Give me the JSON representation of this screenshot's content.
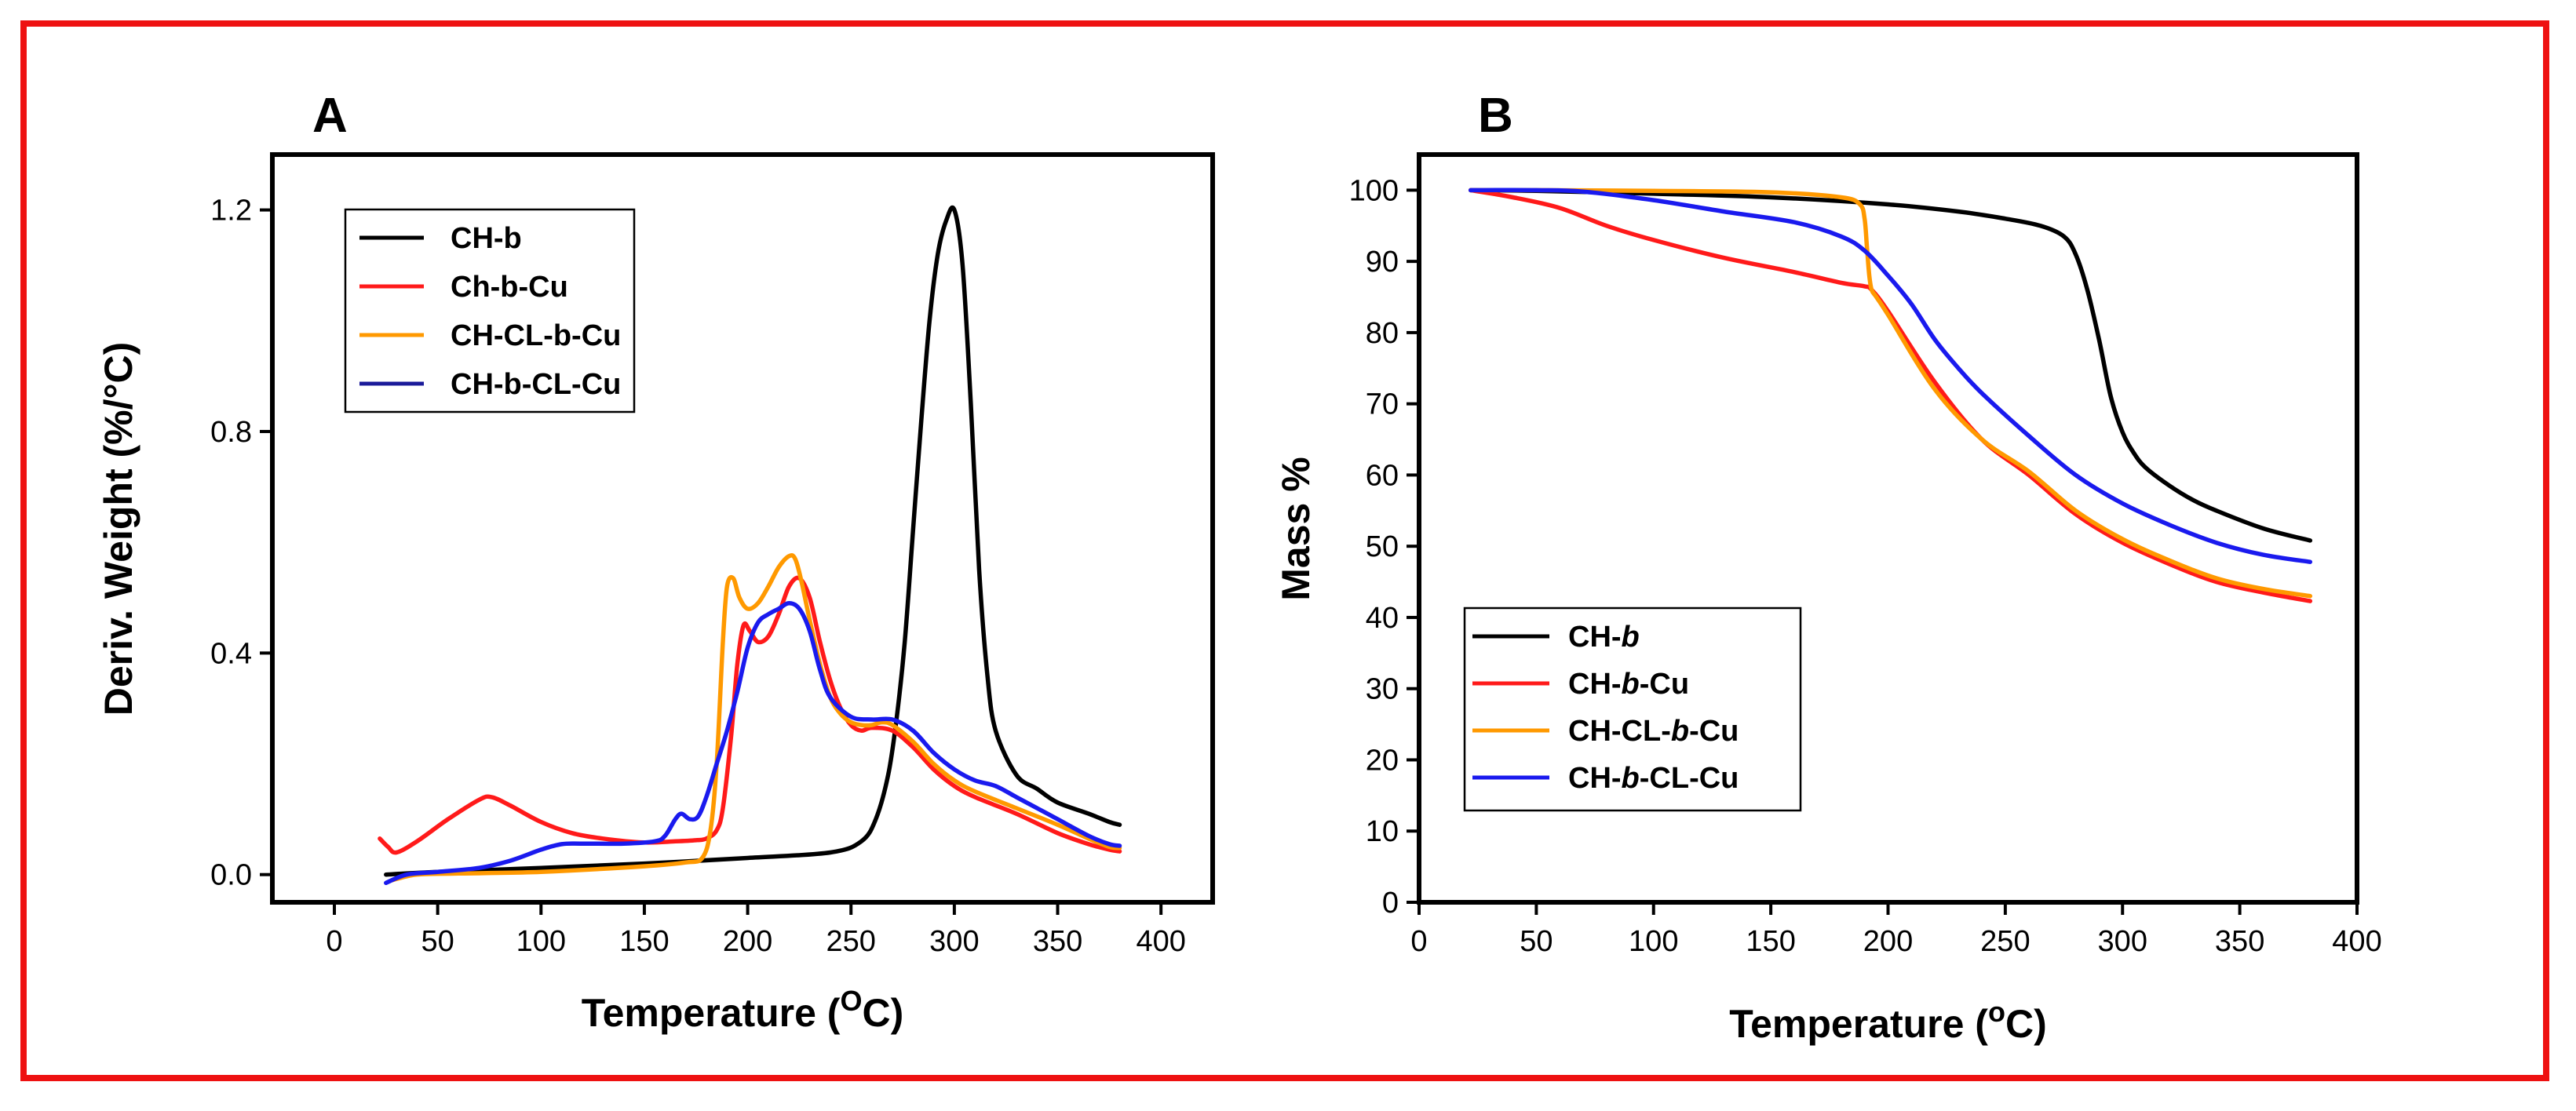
{
  "colors": {
    "frame": "#ee1111",
    "black": "#000000",
    "red": "#ff1a1a",
    "orange": "#ff9900",
    "blue": "#1a1aee",
    "navy": "#1a1a99"
  },
  "chart_data": [
    {
      "panel_label": "A",
      "type": "line",
      "xlabel": {
        "pre": "Temperature (",
        "sup": "O",
        "post": "C)"
      },
      "ylabel": "Deriv. Weight (%/°C)",
      "xlim": [
        -30,
        425
      ],
      "ylim": [
        -0.05,
        1.3
      ],
      "xticks": [
        0,
        50,
        100,
        150,
        200,
        250,
        300,
        350,
        400
      ],
      "yticks": [
        0.0,
        0.4,
        0.8,
        1.2
      ],
      "ytick_labels": [
        "0.0",
        "0.4",
        "0.8",
        "1.2"
      ],
      "legend_position": "top-left",
      "series": [
        {
          "name": "CH-b",
          "color": "#000000",
          "x": [
            25,
            50,
            100,
            150,
            200,
            240,
            255,
            262,
            268,
            272,
            276,
            280,
            284,
            288,
            292,
            296,
            300,
            304,
            308,
            312,
            316,
            320,
            330,
            340,
            350,
            365,
            375,
            380
          ],
          "y": [
            0.0,
            0.005,
            0.012,
            0.02,
            0.03,
            0.04,
            0.06,
            0.1,
            0.18,
            0.28,
            0.42,
            0.62,
            0.82,
            1.0,
            1.12,
            1.18,
            1.2,
            1.1,
            0.85,
            0.55,
            0.36,
            0.26,
            0.18,
            0.155,
            0.13,
            0.11,
            0.095,
            0.09
          ]
        },
        {
          "name": "Ch-b-Cu",
          "color": "#ff1a1a",
          "x": [
            22,
            26,
            30,
            40,
            55,
            70,
            76,
            85,
            100,
            115,
            130,
            150,
            165,
            175,
            180,
            185,
            188,
            192,
            195,
            198,
            201,
            205,
            210,
            215,
            220,
            225,
            230,
            235,
            240,
            245,
            250,
            255,
            260,
            270,
            280,
            290,
            300,
            310,
            330,
            350,
            365,
            375,
            380
          ],
          "y": [
            0.065,
            0.05,
            0.04,
            0.06,
            0.1,
            0.135,
            0.14,
            0.125,
            0.095,
            0.075,
            0.065,
            0.058,
            0.06,
            0.062,
            0.065,
            0.08,
            0.12,
            0.25,
            0.38,
            0.45,
            0.44,
            0.42,
            0.43,
            0.47,
            0.52,
            0.535,
            0.5,
            0.42,
            0.35,
            0.3,
            0.27,
            0.26,
            0.265,
            0.26,
            0.23,
            0.19,
            0.16,
            0.14,
            0.11,
            0.075,
            0.055,
            0.045,
            0.042
          ]
        },
        {
          "name": "CH-CL-b-Cu",
          "color": "#ff9900",
          "x": [
            28,
            40,
            60,
            100,
            150,
            170,
            178,
            182,
            185,
            188,
            190,
            193,
            196,
            200,
            205,
            210,
            215,
            220,
            223,
            226,
            230,
            235,
            240,
            245,
            250,
            255,
            260,
            265,
            270,
            280,
            290,
            300,
            310,
            330,
            350,
            365,
            375,
            380
          ],
          "y": [
            -0.01,
            0.0,
            0.002,
            0.005,
            0.015,
            0.022,
            0.03,
            0.08,
            0.2,
            0.42,
            0.52,
            0.535,
            0.5,
            0.48,
            0.49,
            0.52,
            0.555,
            0.575,
            0.57,
            0.53,
            0.46,
            0.38,
            0.32,
            0.29,
            0.275,
            0.27,
            0.27,
            0.275,
            0.27,
            0.24,
            0.2,
            0.17,
            0.15,
            0.12,
            0.09,
            0.065,
            0.05,
            0.048
          ]
        },
        {
          "name": "CH-b-CL-Cu",
          "color": "#1a1aee",
          "x": [
            25,
            35,
            50,
            70,
            85,
            100,
            110,
            120,
            140,
            155,
            160,
            165,
            168,
            172,
            176,
            180,
            185,
            190,
            195,
            200,
            205,
            210,
            215,
            220,
            225,
            230,
            235,
            240,
            250,
            260,
            270,
            280,
            290,
            300,
            310,
            320,
            330,
            340,
            350,
            365,
            375,
            380
          ],
          "y": [
            -0.015,
            0.0,
            0.005,
            0.012,
            0.025,
            0.045,
            0.055,
            0.056,
            0.056,
            0.06,
            0.07,
            0.1,
            0.11,
            0.1,
            0.105,
            0.14,
            0.2,
            0.26,
            0.33,
            0.41,
            0.455,
            0.47,
            0.48,
            0.49,
            0.48,
            0.44,
            0.37,
            0.32,
            0.285,
            0.28,
            0.28,
            0.26,
            0.22,
            0.19,
            0.17,
            0.16,
            0.14,
            0.12,
            0.1,
            0.07,
            0.055,
            0.052
          ]
        }
      ],
      "legend": [
        "CH-b",
        "Ch-b-Cu",
        "CH-CL-b-Cu",
        "CH-b-CL-Cu"
      ],
      "legend_colors": [
        "#000000",
        "#ff1a1a",
        "#ff9900",
        "#1a1a99"
      ]
    },
    {
      "panel_label": "B",
      "type": "line",
      "xlabel": {
        "pre": "Temperature (",
        "sup": "o",
        "post": "C)"
      },
      "ylabel": "Mass %",
      "xlim": [
        0,
        400
      ],
      "ylim": [
        0,
        105
      ],
      "xticks": [
        0,
        50,
        100,
        150,
        200,
        250,
        300,
        350,
        400
      ],
      "yticks": [
        0,
        10,
        20,
        30,
        40,
        50,
        60,
        70,
        80,
        90,
        100
      ],
      "ytick_labels": [
        "0",
        "10",
        "20",
        "30",
        "40",
        "50",
        "60",
        "70",
        "80",
        "90",
        "100"
      ],
      "legend_position": "bottom-left",
      "series": [
        {
          "name": "CH-b",
          "color": "#000000",
          "x": [
            22,
            50,
            100,
            150,
            200,
            230,
            250,
            265,
            275,
            280,
            285,
            290,
            295,
            300,
            305,
            310,
            320,
            330,
            340,
            360,
            380
          ],
          "y": [
            100,
            99.9,
            99.5,
            99,
            98,
            97,
            96,
            95,
            93.5,
            91,
            86,
            79,
            71,
            66,
            63,
            61,
            58.5,
            56.5,
            55,
            52.5,
            50.8
          ]
        },
        {
          "name": "CH-b-Cu",
          "color": "#ff1a1a",
          "x": [
            22,
            40,
            60,
            80,
            100,
            130,
            160,
            180,
            190,
            193,
            200,
            220,
            240,
            260,
            280,
            300,
            320,
            340,
            360,
            380
          ],
          "y": [
            100,
            99,
            97.5,
            95,
            93,
            90.5,
            88.5,
            87,
            86.5,
            86,
            83,
            73,
            65,
            60,
            54.5,
            50.5,
            47.5,
            45,
            43.5,
            42.3
          ]
        },
        {
          "name": "CH-CL-b-Cu",
          "color": "#ff9900",
          "x": [
            22,
            50,
            100,
            150,
            180,
            188,
            190,
            191,
            192,
            193,
            195,
            200,
            220,
            240,
            260,
            280,
            300,
            320,
            340,
            360,
            380
          ],
          "y": [
            100,
            100,
            99.9,
            99.7,
            99,
            98,
            96,
            92,
            88,
            86,
            85,
            82.5,
            72,
            65,
            60.5,
            55,
            51,
            48,
            45.5,
            44,
            43
          ]
        },
        {
          "name": "CH-b-CL-Cu",
          "color": "#1a1aee",
          "x": [
            22,
            50,
            70,
            100,
            130,
            160,
            180,
            190,
            200,
            210,
            220,
            230,
            240,
            260,
            280,
            300,
            320,
            340,
            360,
            380
          ],
          "y": [
            100,
            100,
            99.8,
            98.6,
            97,
            95.5,
            93.5,
            91.5,
            88,
            84,
            79,
            75,
            71.5,
            65.5,
            60,
            56,
            53,
            50.5,
            48.8,
            47.8
          ]
        }
      ],
      "legend": [
        {
          "pre": "CH-",
          "it": "b",
          "post": ""
        },
        {
          "pre": "CH-",
          "it": "b",
          "post": "-Cu"
        },
        {
          "pre": "CH-CL-",
          "it": "b",
          "post": "-Cu"
        },
        {
          "pre": "CH-",
          "it": "b",
          "post": "-CL-Cu"
        }
      ],
      "legend_colors": [
        "#000000",
        "#ff1a1a",
        "#ff9900",
        "#1a1aee"
      ]
    }
  ]
}
